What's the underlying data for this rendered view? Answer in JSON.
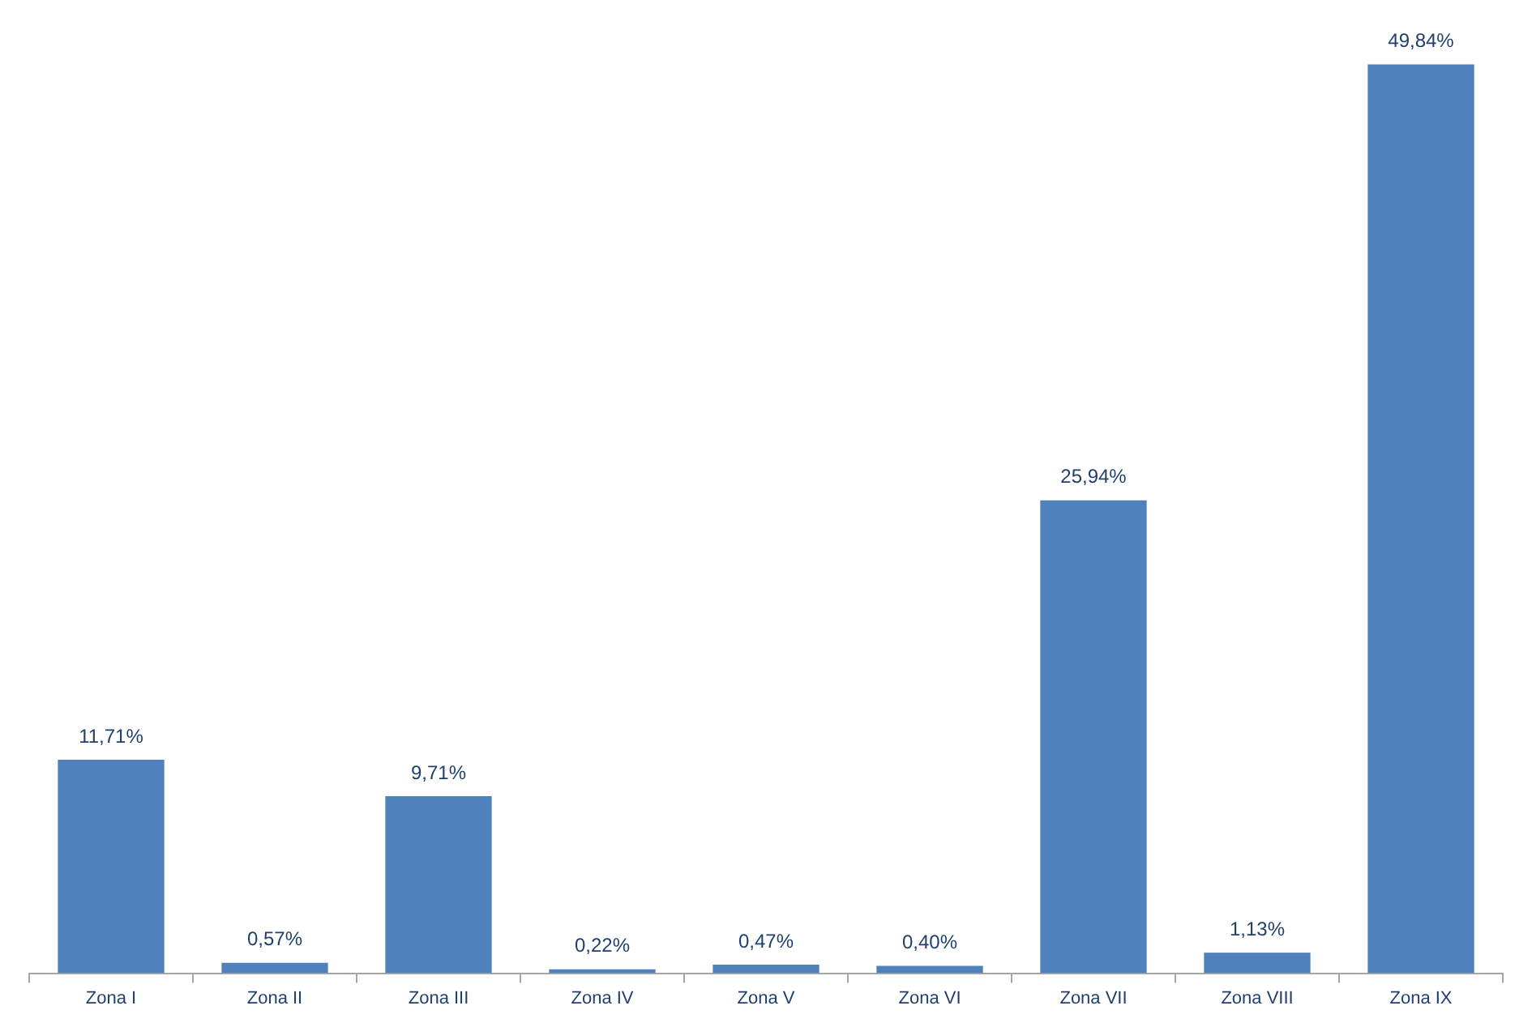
{
  "chart_data": {
    "type": "bar",
    "categories": [
      "Zona I",
      "Zona II",
      "Zona III",
      "Zona IV",
      "Zona V",
      "Zona VI",
      "Zona VII",
      "Zona VIII",
      "Zona IX"
    ],
    "values": [
      11.71,
      0.57,
      9.71,
      0.22,
      0.47,
      0.4,
      25.94,
      1.13,
      49.84
    ],
    "value_labels": [
      "11,71%",
      "0,57%",
      "9,71%",
      "0,22%",
      "0,47%",
      "0,40%",
      "25,94%",
      "1,13%",
      "49,84%"
    ],
    "color": "#4f81bd",
    "grid": false,
    "legend": false,
    "tick_labels": "x"
  }
}
